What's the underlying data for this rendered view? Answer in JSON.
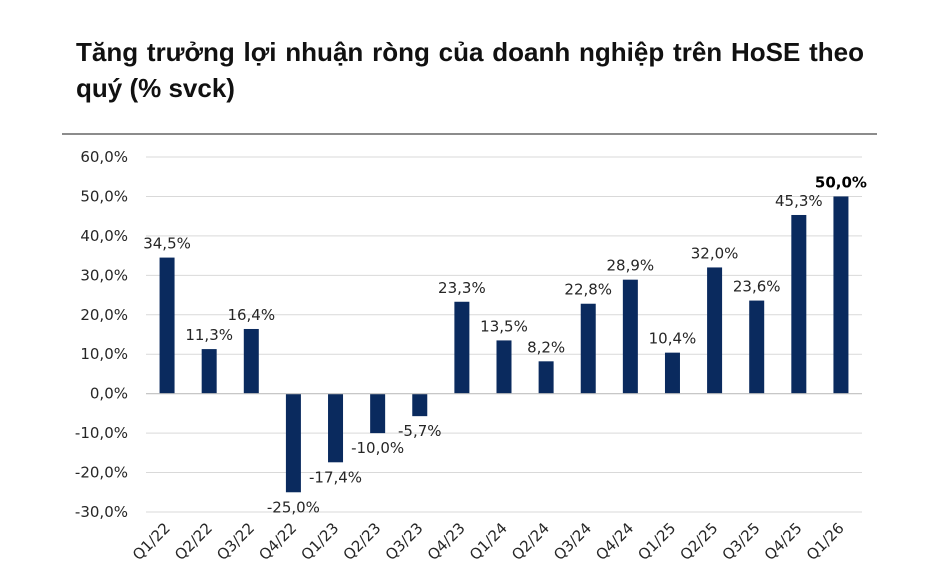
{
  "header": {
    "title": "Tăng trưởng lợi nhuận ròng của doanh nghiệp trên HoSE theo quý (% svck)"
  },
  "colors": {
    "bar": "#0a2a5e",
    "gridline": "#d9d9d9",
    "text": "#262626"
  },
  "chart_data": {
    "type": "bar",
    "title": "Tăng trưởng lợi nhuận ròng của doanh nghiệp trên HoSE theo quý (% svck)",
    "xlabel": "",
    "ylabel": "",
    "categories": [
      "Q1/22",
      "Q2/22",
      "Q3/22",
      "Q4/22",
      "Q1/23",
      "Q2/23",
      "Q3/23",
      "Q4/23",
      "Q1/24",
      "Q2/24",
      "Q3/24",
      "Q4/24",
      "Q1/25",
      "Q2/25",
      "Q3/25",
      "Q4/25",
      "Q1/26"
    ],
    "values": [
      34.5,
      11.3,
      16.4,
      -25.0,
      -17.4,
      -10.0,
      -5.7,
      23.3,
      13.5,
      8.2,
      22.8,
      28.9,
      10.4,
      32.0,
      23.6,
      45.3,
      50.0
    ],
    "value_labels": [
      "34,5%",
      "11,3%",
      "16,4%",
      "-25,0%",
      "-17,4%",
      "-10,0%",
      "-5,7%",
      "23,3%",
      "13,5%",
      "8,2%",
      "22,8%",
      "28,9%",
      "10,4%",
      "32,0%",
      "23,6%",
      "45,3%",
      "50,0%"
    ],
    "highlighted_label_index": 16,
    "ylim": [
      -30,
      60
    ],
    "y_ticks": [
      60,
      50,
      40,
      30,
      20,
      10,
      0,
      -10,
      -20,
      -30
    ],
    "y_tick_labels": [
      "60,0%",
      "50,0%",
      "40,0%",
      "30,0%",
      "20,0%",
      "10,0%",
      "0,0%",
      "-10,0%",
      "-20,0%",
      "-30,0%"
    ],
    "grid": true,
    "legend": "none"
  }
}
